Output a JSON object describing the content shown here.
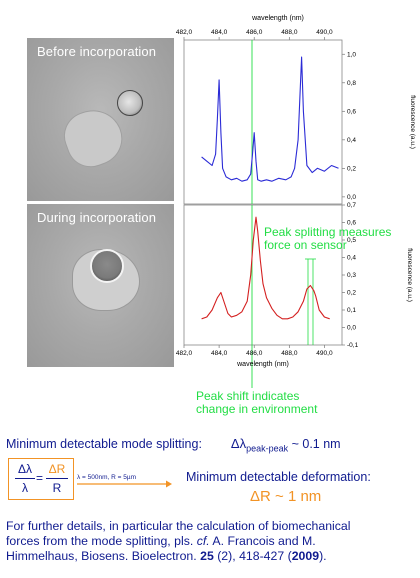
{
  "images": {
    "before": {
      "title": "Before incorporation"
    },
    "during": {
      "title": "During incorporation"
    }
  },
  "top_plot": {
    "xlabel": "wavelength (nm)",
    "ylabel": "fluorescence (a.u.)",
    "xticks": [
      "482,0",
      "484,0",
      "486,0",
      "488,0",
      "490,0"
    ],
    "yticks": [
      "0,0",
      "0,2",
      "0,4",
      "0,6",
      "0,8",
      "1,0"
    ]
  },
  "bottom_plot": {
    "xlabel": "wavelength (nm)",
    "ylabel": "fluorescence (a.u.)",
    "xticks": [
      "482,0",
      "484,0",
      "486,0",
      "488,0",
      "490,0"
    ],
    "yticks": [
      "-0,1",
      "0,0",
      "0,1",
      "0,2",
      "0,3",
      "0,4",
      "0,5",
      "0,6",
      "0,7"
    ]
  },
  "annotations": {
    "peak_splitting": [
      "Peak splitting measures",
      "force on sensor"
    ],
    "peak_shift": [
      "Peak shift indicates",
      "change in environment"
    ]
  },
  "text": {
    "min_mode_label": "Minimum detectable mode splitting:",
    "min_mode_symbol": "Δλ",
    "min_mode_sub": "peak-peak",
    "min_mode_value": " ~ 0.1 nm",
    "formula_lhs_num": "Δλ",
    "formula_lhs_den": "λ",
    "formula_eq": "=",
    "formula_rhs_num": "ΔR",
    "formula_rhs_den": "R",
    "formula_params": "λ = 500nm, R = 5µm",
    "min_deform_label": "Minimum detectable deformation:",
    "min_deform_value": "ΔR ~ 1 nm",
    "details_1": "For further details, in particular the calculation of biomechanical",
    "details_2a": "forces from the mode splitting, pls. ",
    "details_2b": "cf.",
    "details_2c": " A. Francois and M.",
    "details_3a": "Himmelhaus, Biosens. Bioelectron. ",
    "details_3b": "25",
    "details_3c": " (2), 418-427 (",
    "details_3d": "2009",
    "details_3e": ")."
  },
  "chart_data": [
    {
      "type": "line",
      "title": "",
      "xlabel": "wavelength (nm)",
      "ylabel": "fluorescence (a.u.)",
      "xlim": [
        482.0,
        491.0
      ],
      "ylim": [
        -0.05,
        1.1
      ],
      "series": [
        {
          "color": "#2b2bd6",
          "x": [
            483.0,
            483.3,
            483.6,
            483.8,
            483.9,
            484.0,
            484.1,
            484.2,
            484.4,
            484.7,
            485.0,
            485.3,
            485.6,
            485.8,
            485.9,
            486.0,
            486.1,
            486.2,
            486.4,
            486.7,
            487.0,
            487.4,
            487.8,
            488.1,
            488.3,
            488.5,
            488.6,
            488.7,
            488.8,
            489.0,
            489.3,
            489.6,
            490.0,
            490.4,
            490.8
          ],
          "y": [
            0.28,
            0.25,
            0.22,
            0.3,
            0.55,
            0.82,
            0.45,
            0.2,
            0.14,
            0.12,
            0.13,
            0.11,
            0.12,
            0.16,
            0.3,
            0.45,
            0.25,
            0.12,
            0.11,
            0.12,
            0.11,
            0.13,
            0.12,
            0.14,
            0.2,
            0.4,
            0.7,
            0.98,
            0.6,
            0.22,
            0.17,
            0.2,
            0.18,
            0.22,
            0.2
          ]
        }
      ]
    },
    {
      "type": "line",
      "title": "",
      "xlabel": "wavelength (nm)",
      "ylabel": "fluorescence (a.u.)",
      "xlim": [
        482.0,
        491.0
      ],
      "ylim": [
        -0.1,
        0.7
      ],
      "series": [
        {
          "color": "#d42020",
          "x": [
            483.0,
            483.3,
            483.6,
            483.9,
            484.1,
            484.3,
            484.5,
            484.7,
            485.0,
            485.3,
            485.6,
            485.8,
            485.95,
            486.1,
            486.2,
            486.35,
            486.5,
            486.7,
            487.0,
            487.3,
            487.6,
            487.9,
            488.2,
            488.5,
            488.8,
            489.0,
            489.2,
            489.4,
            489.5,
            489.7,
            490.0,
            490.3
          ],
          "y": [
            0.05,
            0.06,
            0.1,
            0.17,
            0.2,
            0.14,
            0.08,
            0.06,
            0.07,
            0.09,
            0.15,
            0.3,
            0.5,
            0.63,
            0.55,
            0.38,
            0.25,
            0.17,
            0.11,
            0.07,
            0.05,
            0.05,
            0.06,
            0.09,
            0.15,
            0.22,
            0.24,
            0.21,
            0.18,
            0.1,
            0.06,
            0.05
          ]
        }
      ]
    }
  ]
}
